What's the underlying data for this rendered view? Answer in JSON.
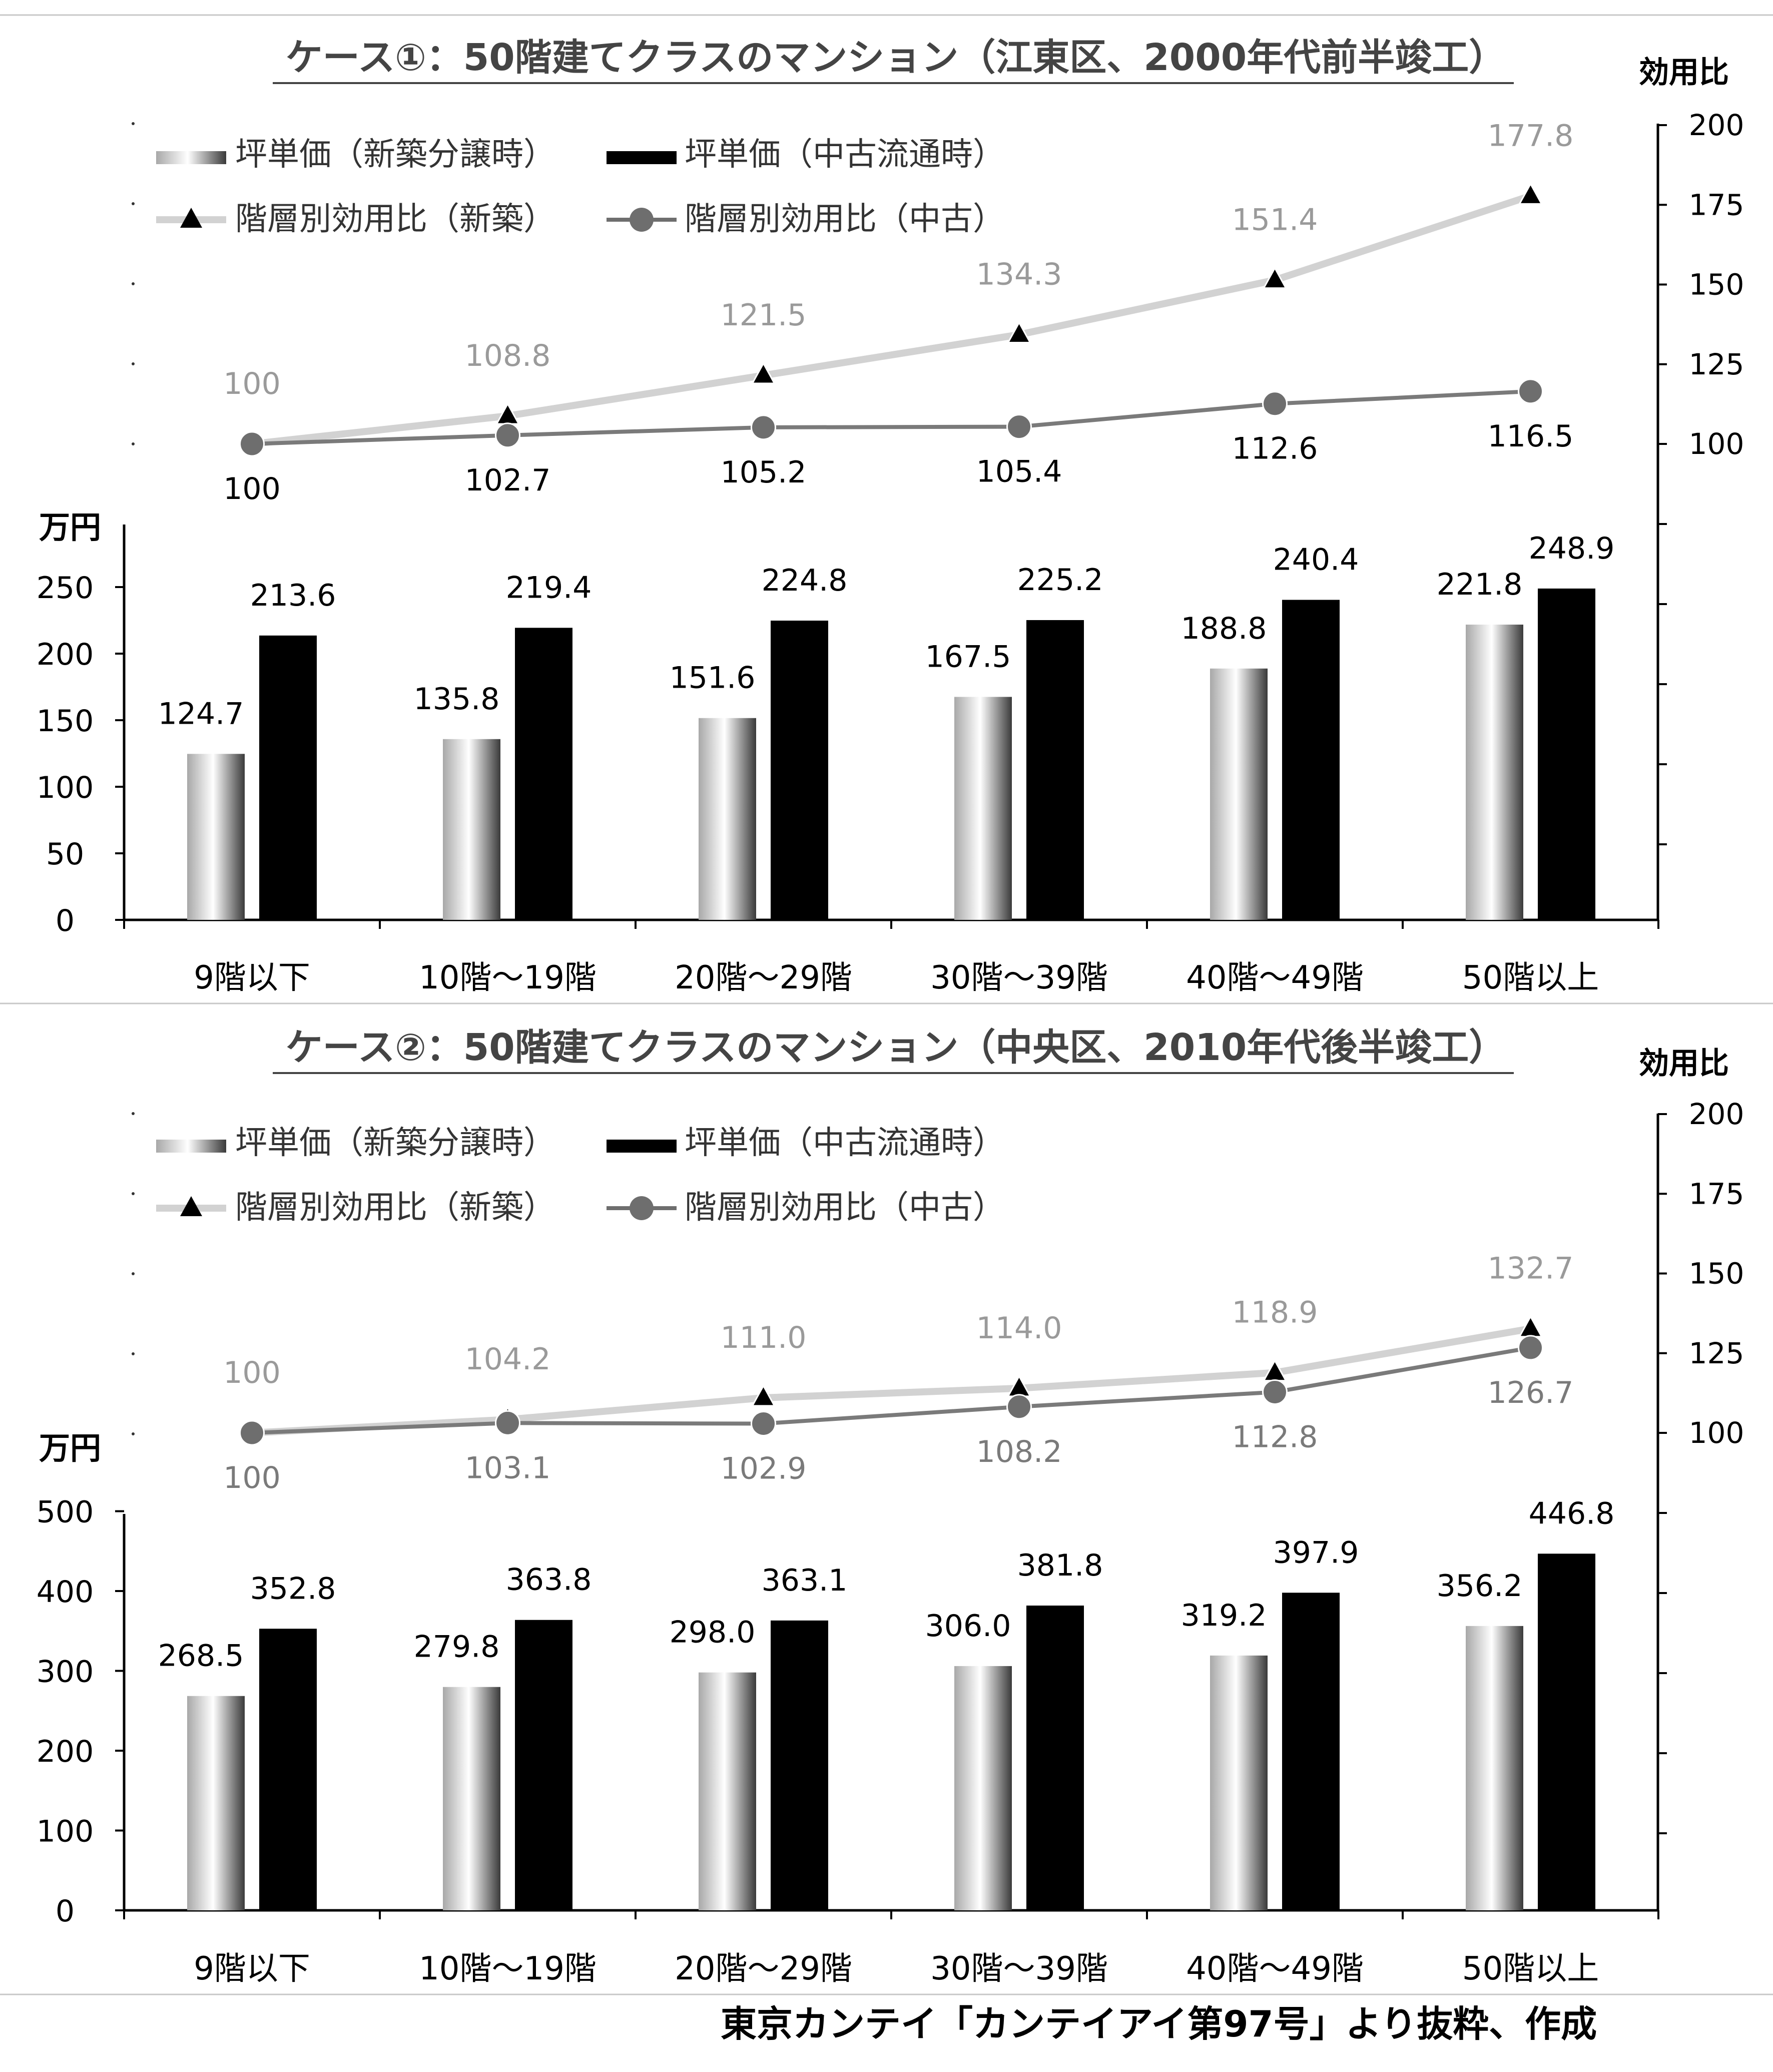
{
  "source_note": "東京カンテイ「カンテイアイ第97号」より抜粋、作成",
  "chart_data": [
    {
      "type": "bar",
      "title": "ケース①：50階建てクラスのマンション（江東区、2000年代前半竣工）",
      "categories": [
        "9階以下",
        "10階～19階",
        "20階～29階",
        "30階～39階",
        "40階～49階",
        "50階以上"
      ],
      "ylabel": "万円",
      "ylim": [
        0,
        250
      ],
      "yticks": [
        "0",
        "50",
        "100",
        "150",
        "200",
        "250"
      ],
      "y2label": "効用比",
      "y2lim": [
        100,
        200
      ],
      "y2ticks": [
        "100",
        "125",
        "150",
        "175",
        "200"
      ],
      "legend": [
        "坪単価（新築分譲時）",
        "坪単価（中古流通時）",
        "階層別効用比（新築）",
        "階層別効用比（中古）"
      ],
      "series": [
        {
          "name": "坪単価（新築分譲時）",
          "type": "bar",
          "values": [
            124.7,
            135.8,
            151.6,
            167.5,
            188.8,
            221.8
          ],
          "labels": [
            "124.7",
            "135.8",
            "151.6",
            "167.5",
            "188.8",
            "221.8"
          ]
        },
        {
          "name": "坪単価（中古流通時）",
          "type": "bar",
          "values": [
            213.6,
            219.4,
            224.8,
            225.2,
            240.4,
            248.9
          ],
          "labels": [
            "213.6",
            "219.4",
            "224.8",
            "225.2",
            "240.4",
            "248.9"
          ]
        },
        {
          "name": "階層別効用比（新築）",
          "type": "line",
          "axis": "y2",
          "values": [
            100,
            108.8,
            121.5,
            134.3,
            151.4,
            177.8
          ],
          "labels": [
            "100",
            "108.8",
            "121.5",
            "134.3",
            "151.4",
            "177.8"
          ]
        },
        {
          "name": "階層別効用比（中古）",
          "type": "line",
          "axis": "y2",
          "values": [
            100,
            102.7,
            105.2,
            105.4,
            112.6,
            116.5
          ],
          "labels": [
            "100",
            "102.7",
            "105.2",
            "105.4",
            "112.6",
            "116.5"
          ]
        }
      ]
    },
    {
      "type": "bar",
      "title": "ケース②：50階建てクラスのマンション（中央区、2010年代後半竣工）",
      "categories": [
        "9階以下",
        "10階～19階",
        "20階～29階",
        "30階～39階",
        "40階～49階",
        "50階以上"
      ],
      "ylabel": "万円",
      "ylim": [
        0,
        500
      ],
      "yticks": [
        "0",
        "100",
        "200",
        "300",
        "400",
        "500"
      ],
      "y2label": "効用比",
      "y2lim": [
        100,
        200
      ],
      "y2ticks": [
        "100",
        "125",
        "150",
        "175",
        "200"
      ],
      "legend": [
        "坪単価（新築分譲時）",
        "坪単価（中古流通時）",
        "階層別効用比（新築）",
        "階層別効用比（中古）"
      ],
      "series": [
        {
          "name": "坪単価（新築分譲時）",
          "type": "bar",
          "values": [
            268.5,
            279.8,
            298.0,
            306.0,
            319.2,
            356.2
          ],
          "labels": [
            "268.5",
            "279.8",
            "298.0",
            "306.0",
            "319.2",
            "356.2"
          ]
        },
        {
          "name": "坪単価（中古流通時）",
          "type": "bar",
          "values": [
            352.8,
            363.8,
            363.1,
            381.8,
            397.9,
            446.8
          ],
          "labels": [
            "352.8",
            "363.8",
            "363.1",
            "381.8",
            "397.9",
            "446.8"
          ]
        },
        {
          "name": "階層別効用比（新築）",
          "type": "line",
          "axis": "y2",
          "values": [
            100,
            104.2,
            111.0,
            114.0,
            118.9,
            132.7
          ],
          "labels": [
            "100",
            "104.2",
            "111.0",
            "114.0",
            "118.9",
            "132.7"
          ]
        },
        {
          "name": "階層別効用比（中古）",
          "type": "line",
          "axis": "y2",
          "values": [
            100,
            103.1,
            102.9,
            108.2,
            112.8,
            126.7
          ],
          "labels": [
            "100",
            "103.1",
            "102.9",
            "108.2",
            "112.8",
            "126.7"
          ]
        }
      ]
    }
  ]
}
